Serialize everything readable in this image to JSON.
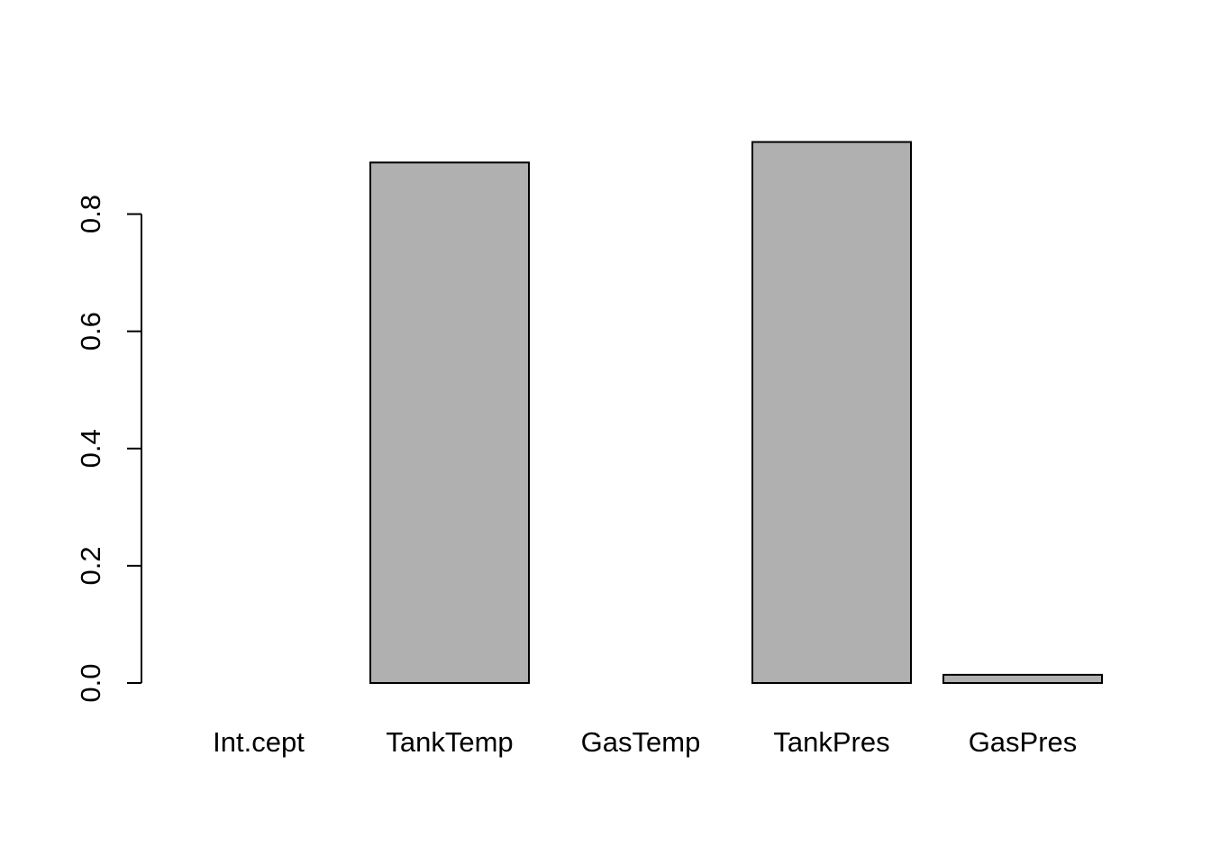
{
  "chart_data": {
    "type": "bar",
    "categories": [
      "Int.cept",
      "TankTemp",
      "GasTemp",
      "TankPres",
      "GasPres"
    ],
    "values": [
      0.0,
      0.888,
      0.0,
      0.923,
      0.014
    ],
    "yticks": [
      "0.0",
      "0.2",
      "0.4",
      "0.6",
      "0.8"
    ],
    "ytick_values": [
      0.0,
      0.2,
      0.4,
      0.6,
      0.8
    ],
    "ylim": [
      0,
      0.923
    ],
    "bar_fill": "#b0b0b0",
    "bar_stroke": "#000000",
    "background": "#ffffff",
    "grid": false,
    "legend": "none"
  }
}
